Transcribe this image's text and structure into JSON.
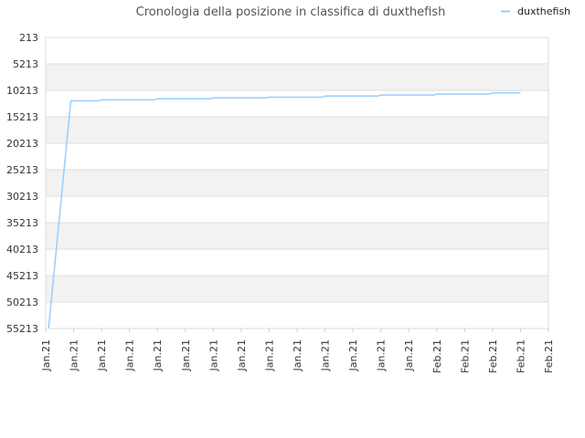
{
  "chart_data": {
    "type": "line",
    "title": "Cronologia della posizione in classifica di duxthefish",
    "xlabel": "",
    "ylabel": "",
    "legend_position": "top-right",
    "grid": true,
    "y_inverted": true,
    "ylim": [
      213,
      55213
    ],
    "y_ticks": [
      "213",
      "5213",
      "10213",
      "15213",
      "20213",
      "25213",
      "30213",
      "35213",
      "40213",
      "45213",
      "50213",
      "55213"
    ],
    "x_ticks": [
      "Jan.21",
      "Jan.21",
      "Jan.21",
      "Jan.21",
      "Jan.21",
      "Jan.21",
      "Jan.21",
      "Jan.21",
      "Jan.21",
      "Jan.21",
      "Jan.21",
      "Jan.21",
      "Jan.21",
      "Jan.21",
      "Feb.21",
      "Feb.21",
      "Feb.21",
      "Feb.21",
      "Feb.21"
    ],
    "colors": {
      "series": "#99ccff",
      "grid_band": "#f2f2f2",
      "grid_line": "#dddddd"
    },
    "series": [
      {
        "name": "duxthefish",
        "points": [
          [
            0.1,
            55213
          ],
          [
            0.9,
            12200
          ],
          [
            1.0,
            12200
          ],
          [
            1.9,
            12200
          ],
          [
            2.0,
            12000
          ],
          [
            3.9,
            12000
          ],
          [
            4.0,
            11800
          ],
          [
            5.9,
            11800
          ],
          [
            6.0,
            11650
          ],
          [
            7.9,
            11650
          ],
          [
            8.0,
            11500
          ],
          [
            9.9,
            11500
          ],
          [
            10.0,
            11300
          ],
          [
            11.9,
            11300
          ],
          [
            12.0,
            11100
          ],
          [
            13.9,
            11100
          ],
          [
            14.0,
            10900
          ],
          [
            15.9,
            10900
          ],
          [
            16.0,
            10700
          ],
          [
            17.0,
            10700
          ]
        ]
      }
    ]
  }
}
